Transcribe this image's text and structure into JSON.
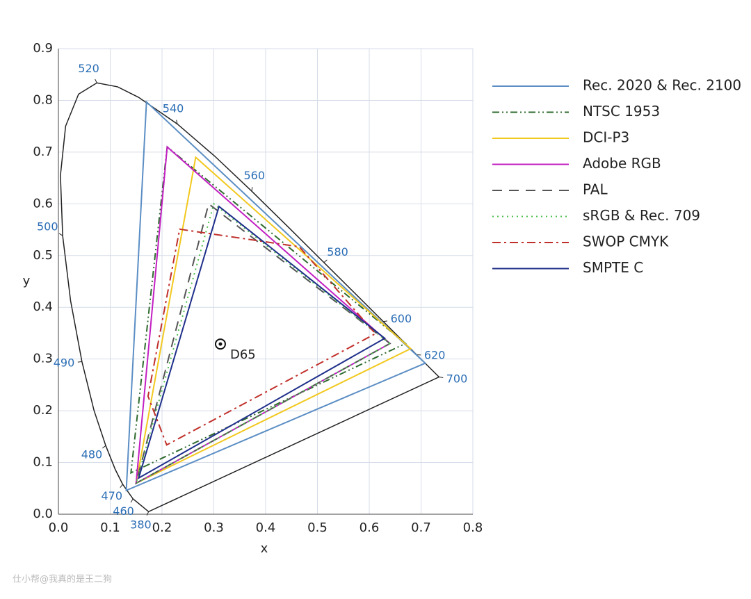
{
  "chart_data": {
    "type": "line",
    "xlabel": "x",
    "ylabel": "y",
    "xlim": [
      0,
      0.8
    ],
    "ylim": [
      0,
      0.9
    ],
    "xticks": [
      {
        "value": 0,
        "label": "0.0"
      },
      0.1,
      0.2,
      0.3,
      0.4,
      0.5,
      0.6,
      0.7,
      0.8
    ],
    "yticks": [
      {
        "value": 0,
        "label": "0.0"
      },
      0.1,
      0.2,
      0.3,
      0.4,
      0.5,
      0.6,
      0.7,
      0.8,
      0.9
    ],
    "grid": true,
    "legend": "right",
    "locus": {
      "color": "#222222",
      "x": [
        0.1741,
        0.144,
        0.1241,
        0.1096,
        0.0913,
        0.0687,
        0.0454,
        0.0235,
        0.0082,
        0.0039,
        0.0139,
        0.0389,
        0.0743,
        0.1142,
        0.1547,
        0.2296,
        0.3016,
        0.3731,
        0.4441,
        0.5125,
        0.5752,
        0.627,
        0.6915,
        0.719,
        0.7347
      ],
      "y": [
        0.005,
        0.0297,
        0.0578,
        0.0868,
        0.1327,
        0.2007,
        0.295,
        0.4127,
        0.5384,
        0.6548,
        0.7502,
        0.812,
        0.8338,
        0.8262,
        0.8059,
        0.7543,
        0.6923,
        0.6245,
        0.5547,
        0.4866,
        0.4242,
        0.3725,
        0.3083,
        0.2809,
        0.2653
      ]
    },
    "wavelength_labels": [
      {
        "label": "380",
        "x": 0.1741,
        "y": 0.005
      },
      {
        "label": "460",
        "x": 0.144,
        "y": 0.0297
      },
      {
        "label": "470",
        "x": 0.1241,
        "y": 0.0578
      },
      {
        "label": "480",
        "x": 0.0913,
        "y": 0.1327
      },
      {
        "label": "490",
        "x": 0.0454,
        "y": 0.295
      },
      {
        "label": "500",
        "x": 0.0082,
        "y": 0.5384
      },
      {
        "label": "520",
        "x": 0.0743,
        "y": 0.8338
      },
      {
        "label": "540",
        "x": 0.2296,
        "y": 0.7543
      },
      {
        "label": "560",
        "x": 0.3731,
        "y": 0.6245
      },
      {
        "label": "580",
        "x": 0.5125,
        "y": 0.4866
      },
      {
        "label": "600",
        "x": 0.627,
        "y": 0.3725
      },
      {
        "label": "620",
        "x": 0.6915,
        "y": 0.3083
      },
      {
        "label": "700",
        "x": 0.7347,
        "y": 0.2653
      }
    ],
    "series": [
      {
        "name": "Rec. 2020 & Rec. 2100",
        "color": "#5b8ec4",
        "dash": "solid",
        "x": [
          0.708,
          0.17,
          0.131
        ],
        "y": [
          0.292,
          0.797,
          0.046
        ]
      },
      {
        "name": "NTSC 1953",
        "color": "#2e6b2e",
        "dash": "dashdotdot",
        "x": [
          0.67,
          0.21,
          0.14
        ],
        "y": [
          0.33,
          0.71,
          0.08
        ]
      },
      {
        "name": "DCI-P3",
        "color": "#f2c81e",
        "dash": "solid",
        "x": [
          0.68,
          0.265,
          0.15
        ],
        "y": [
          0.32,
          0.69,
          0.06
        ]
      },
      {
        "name": "Adobe RGB",
        "color": "#c21fc2",
        "dash": "solid",
        "x": [
          0.64,
          0.21,
          0.15
        ],
        "y": [
          0.33,
          0.71,
          0.06
        ]
      },
      {
        "name": "PAL",
        "color": "#555555",
        "dash": "dashed",
        "x": [
          0.64,
          0.29,
          0.15
        ],
        "y": [
          0.33,
          0.6,
          0.06
        ]
      },
      {
        "name": "sRGB & Rec. 709",
        "color": "#4cbf4c",
        "dash": "dotted",
        "x": [
          0.64,
          0.3,
          0.15
        ],
        "y": [
          0.33,
          0.6,
          0.06
        ]
      },
      {
        "name": "SWOP CMYK",
        "color": "#c0302b",
        "dash": "dashdot",
        "x": [
          0.234,
          0.465,
          0.612,
          0.209,
          0.173
        ],
        "y": [
          0.551,
          0.517,
          0.349,
          0.134,
          0.228
        ]
      },
      {
        "name": "SMPTE C",
        "color": "#1f2f8a",
        "dash": "solid",
        "x": [
          0.63,
          0.31,
          0.155
        ],
        "y": [
          0.34,
          0.595,
          0.07
        ]
      }
    ],
    "white_point": {
      "label": "D65",
      "x": 0.3127,
      "y": 0.329
    },
    "watermark": "仕小帮@我真的是王二狗"
  }
}
